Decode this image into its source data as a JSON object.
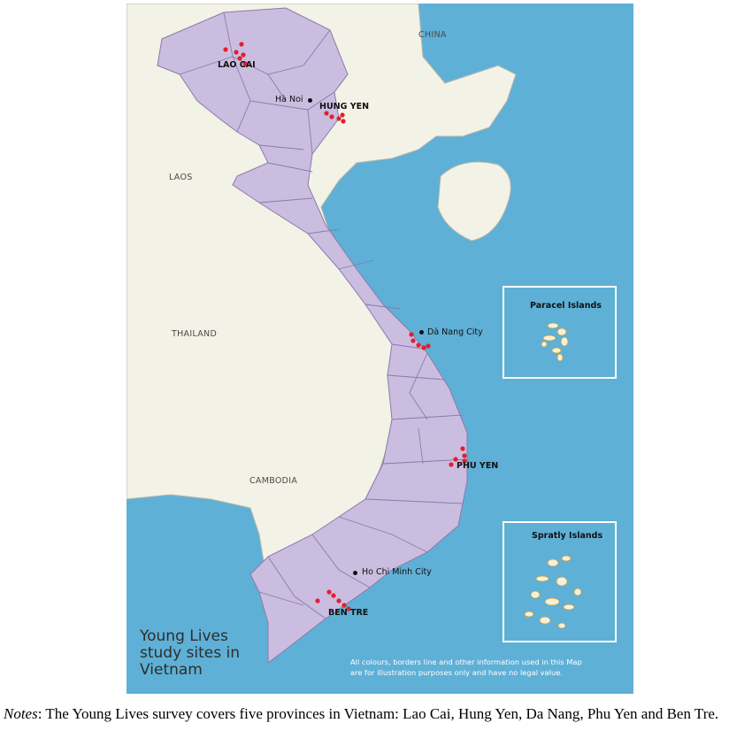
{
  "map": {
    "colors": {
      "sea": "#5fb0d6",
      "land_neighbor": "#f2f2e6",
      "vietnam": "#cbbde0",
      "border": "#8a7aaa",
      "site": "#e0202e"
    },
    "countries": {
      "china": "CHINA",
      "laos": "LAOS",
      "thailand": "THAILAND",
      "cambodia": "CAMBODIA"
    },
    "provinces": {
      "lao_cai": "LAO CAI",
      "hung_yen": "HUNG YEN",
      "phu_yen": "PHU YEN",
      "ben_tre": "BEN TRE"
    },
    "cities": {
      "ha_noi": "Hà Noi",
      "da_nang": "Dà Nang City",
      "hcmc": "Ho Chi Minh City"
    },
    "insets": {
      "paracel": "Paracel Islands",
      "spratly": "Spratly Islands"
    },
    "title": [
      "Young Lives",
      "study sites in",
      "Vietnam"
    ],
    "disclaimer": [
      "All colours, borders line and other information used in this Map",
      "are for illustration purposes only and have no legal value."
    ]
  },
  "caption": {
    "label": "Notes",
    "text": ": The Young Lives survey covers five provinces in Vietnam: Lao Cai, Hung Yen, Da Nang, Phu Yen and Ben Tre."
  }
}
